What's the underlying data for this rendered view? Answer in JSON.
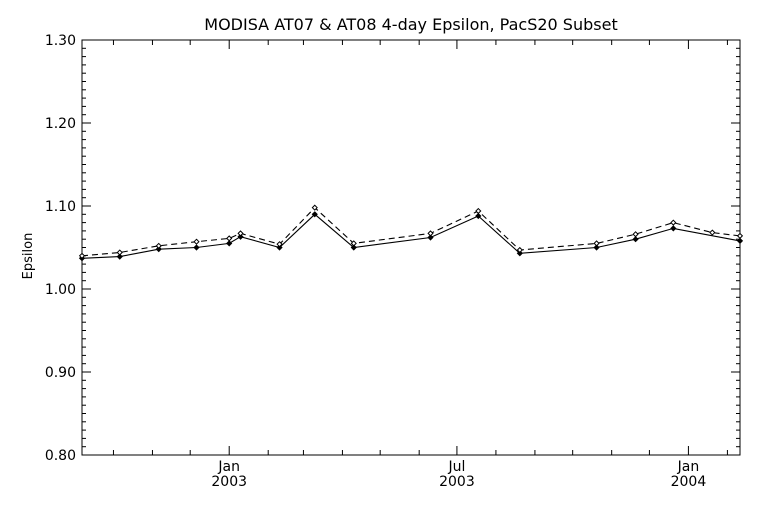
{
  "chart_data": {
    "type": "line",
    "title": "MODISA AT07 & AT08 4-day Epsilon, PacS20 Subset",
    "xlabel": "",
    "ylabel": "Epsilon",
    "x_range": [
      "2002-09-06",
      "2004-02-11"
    ],
    "ylim": [
      0.8,
      1.3
    ],
    "y_ticks": [
      "0.80",
      "0.90",
      "1.00",
      "1.10",
      "1.20",
      "1.30"
    ],
    "x_ticks": [
      {
        "month": "Jan",
        "year": "2003",
        "date": "2003-01-01"
      },
      {
        "month": "Jul",
        "year": "2003",
        "date": "2003-07-01"
      },
      {
        "month": "Jan",
        "year": "2004",
        "date": "2004-01-01"
      }
    ],
    "grid": false,
    "legend": "none",
    "series": [
      {
        "style": "solid",
        "color": "#000000",
        "x": [
          "2002-09-06",
          "2002-10-06",
          "2002-11-06",
          "2002-12-06",
          "2003-01-01",
          "2003-01-10",
          "2003-02-10",
          "2003-03-10",
          "2003-04-10",
          "2003-06-10",
          "2003-07-18",
          "2003-08-20",
          "2003-10-20",
          "2003-11-20",
          "2003-12-20",
          "2004-02-11"
        ],
        "y": [
          1.037,
          1.039,
          1.048,
          1.05,
          1.055,
          1.063,
          1.05,
          1.09,
          1.05,
          1.062,
          1.088,
          1.043,
          1.05,
          1.06,
          1.073,
          1.058
        ]
      },
      {
        "style": "dashed",
        "color": "#000000",
        "x": [
          "2002-09-06",
          "2002-10-06",
          "2002-11-06",
          "2002-12-06",
          "2003-01-01",
          "2003-01-10",
          "2003-02-10",
          "2003-03-10",
          "2003-04-10",
          "2003-06-10",
          "2003-07-18",
          "2003-08-20",
          "2003-10-20",
          "2003-11-20",
          "2003-12-20",
          "2004-01-20",
          "2004-02-11"
        ],
        "y": [
          1.04,
          1.044,
          1.052,
          1.057,
          1.061,
          1.067,
          1.054,
          1.098,
          1.055,
          1.067,
          1.094,
          1.047,
          1.055,
          1.066,
          1.08,
          1.068,
          1.064
        ]
      }
    ]
  }
}
